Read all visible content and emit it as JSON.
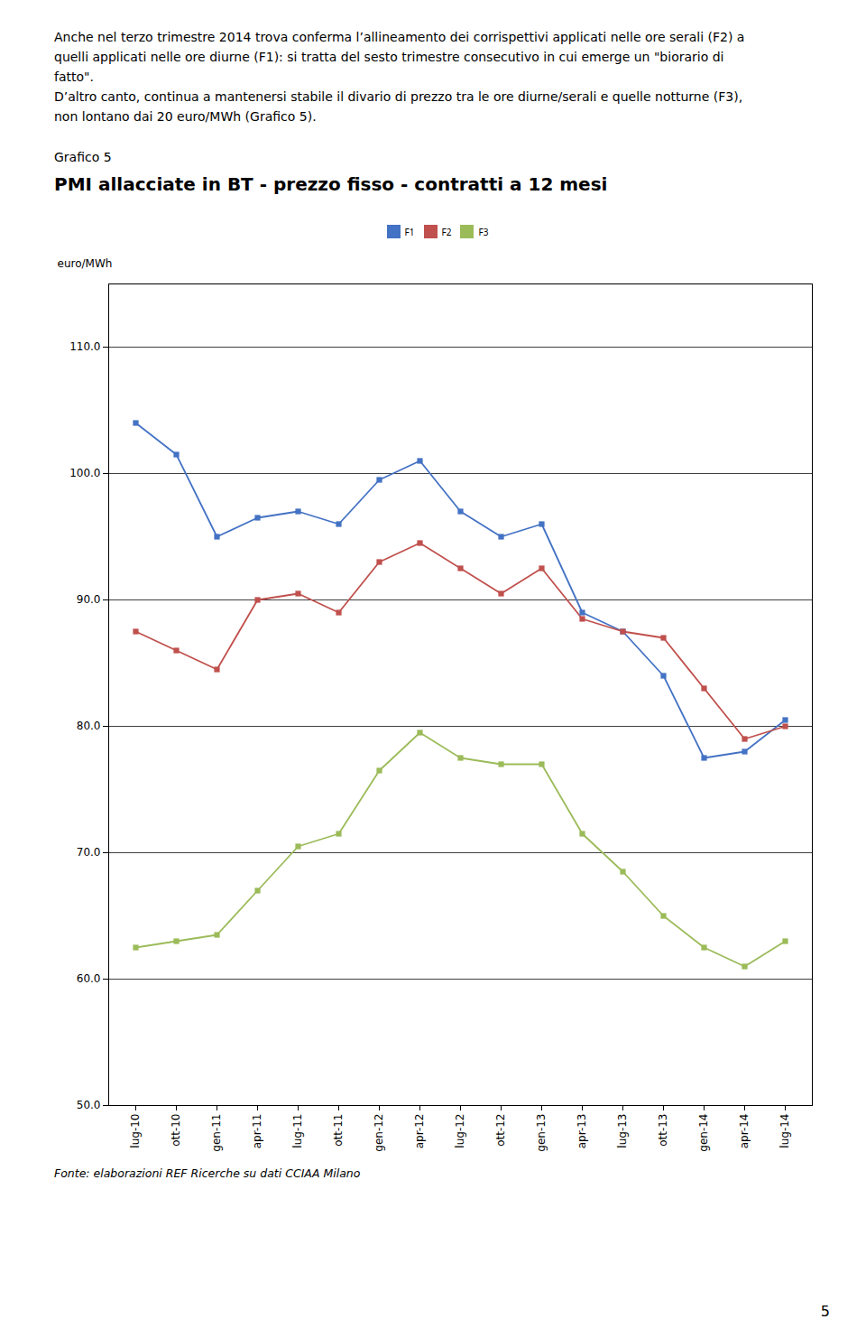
{
  "chart_data": {
    "type": "line",
    "body_text": [
      "Anche nel terzo trimestre 2014 trova conferma l’allineamento dei corrispettivi applicati nelle ore serali (F2) a",
      "quelli applicati nelle ore diurne (F1): si tratta del sesto trimestre consecutivo in cui emerge un \"biorario di",
      "fatto\".",
      "D’altro canto, continua a mantenersi stabile il divario di prezzo tra le ore diurne/serali e quelle notturne (F3),",
      "non lontano dai 20 euro/MWh (Grafico 5)."
    ],
    "figure_label": "Grafico 5",
    "title": "PMI allacciate in BT - prezzo fisso - contratti a 12 mesi",
    "ylabel": "euro/MWh",
    "source": "Fonte: elaborazioni REF Ricerche su dati CCIAA Milano",
    "page_number": "5",
    "categories": [
      "lug-10",
      "ott-10",
      "gen-11",
      "apr-11",
      "lug-11",
      "ott-11",
      "gen-12",
      "apr-12",
      "lug-12",
      "ott-12",
      "gen-13",
      "apr-13",
      "lug-13",
      "ott-13",
      "gen-14",
      "apr-14",
      "lug-14"
    ],
    "series": [
      {
        "name": "F1",
        "color": "#4472C4",
        "values": [
          104.0,
          101.5,
          95.0,
          96.5,
          97.0,
          96.0,
          99.5,
          101.0,
          97.0,
          95.0,
          96.0,
          89.0,
          87.5,
          84.0,
          77.5,
          78.0,
          80.5
        ]
      },
      {
        "name": "F2",
        "color": "#C0504D",
        "values": [
          87.5,
          86.0,
          84.5,
          90.0,
          90.5,
          89.0,
          93.0,
          94.5,
          92.5,
          90.5,
          92.5,
          88.5,
          87.5,
          87.0,
          83.0,
          79.0,
          80.0
        ]
      },
      {
        "name": "F3",
        "color": "#9BBB59",
        "values": [
          62.5,
          63.0,
          63.5,
          67.0,
          70.5,
          71.5,
          76.5,
          79.5,
          77.5,
          77.0,
          77.0,
          71.5,
          68.5,
          65.0,
          62.5,
          61.0,
          63.0
        ]
      }
    ],
    "ylim": [
      50.0,
      115.0
    ],
    "yticks": [
      {
        "value": 50,
        "label": "50.0"
      },
      {
        "value": 60,
        "label": "60.0"
      },
      {
        "value": 70,
        "label": "70.0"
      },
      {
        "value": 80,
        "label": "80.0"
      },
      {
        "value": 90,
        "label": "90.0"
      },
      {
        "value": 100,
        "label": "100.0"
      },
      {
        "value": 110,
        "label": "110.0"
      }
    ],
    "grid": true,
    "legend": "upper center",
    "marker": "square",
    "line_style": "solid"
  }
}
